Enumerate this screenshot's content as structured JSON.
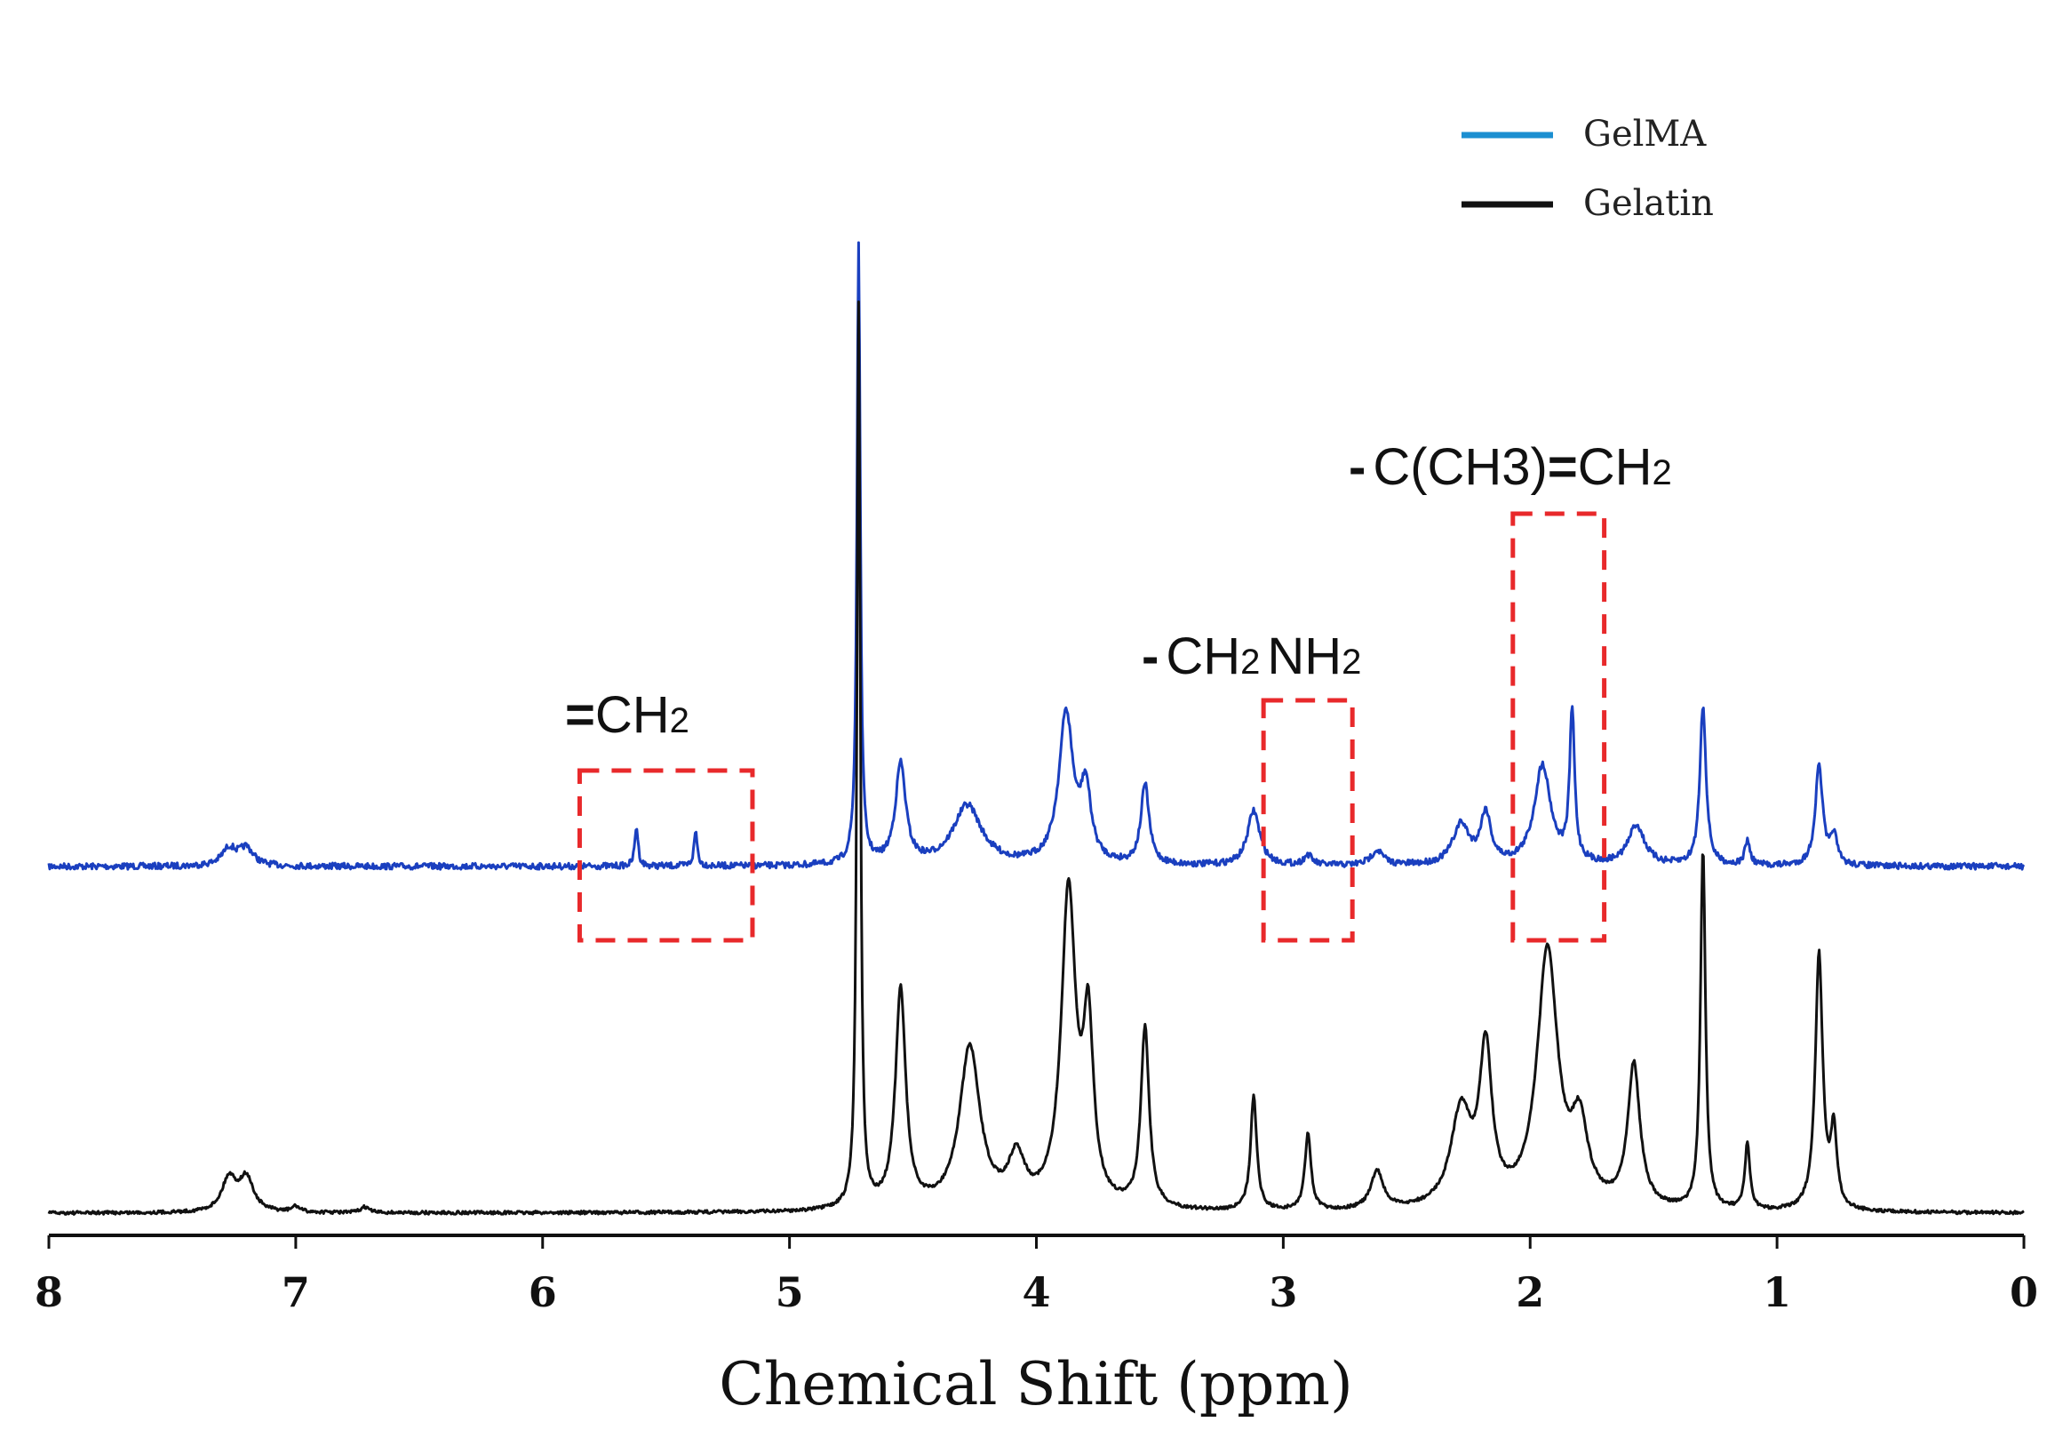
{
  "chart_data": {
    "type": "line",
    "title": "",
    "xlabel": "Chemical Shift (ppm)",
    "ylabel": "",
    "xlim": [
      8,
      0
    ],
    "x_reversed": true,
    "x_ticks": [
      "8",
      "7",
      "6",
      "5",
      "4",
      "3",
      "2",
      "1",
      "0"
    ],
    "grid": false,
    "legend_position": "top-right",
    "legend": [
      {
        "label": "GelMA",
        "color": "#1b8fd1"
      },
      {
        "label": "Gelatin",
        "color": "#111111"
      }
    ],
    "series": [
      {
        "name": "GelMA",
        "color": "#1a3fbf",
        "baseline": 0,
        "peaks": [
          {
            "ppm": 7.27,
            "height": 0.035,
            "width": 0.035
          },
          {
            "ppm": 7.2,
            "height": 0.035,
            "width": 0.035
          },
          {
            "ppm": 5.62,
            "height": 0.08,
            "width": 0.008
          },
          {
            "ppm": 5.38,
            "height": 0.07,
            "width": 0.008
          },
          {
            "ppm": 4.72,
            "height": 1.25,
            "width": 0.008
          },
          {
            "ppm": 4.55,
            "height": 0.2,
            "width": 0.025
          },
          {
            "ppm": 4.28,
            "height": 0.12,
            "width": 0.07
          },
          {
            "ppm": 3.88,
            "height": 0.3,
            "width": 0.035
          },
          {
            "ppm": 3.8,
            "height": 0.14,
            "width": 0.025
          },
          {
            "ppm": 3.56,
            "height": 0.16,
            "width": 0.02
          },
          {
            "ppm": 3.12,
            "height": 0.11,
            "width": 0.03
          },
          {
            "ppm": 2.9,
            "height": 0.02,
            "width": 0.02
          },
          {
            "ppm": 2.62,
            "height": 0.03,
            "width": 0.03
          },
          {
            "ppm": 2.28,
            "height": 0.08,
            "width": 0.04
          },
          {
            "ppm": 2.18,
            "height": 0.1,
            "width": 0.025
          },
          {
            "ppm": 1.95,
            "height": 0.2,
            "width": 0.04
          },
          {
            "ppm": 1.83,
            "height": 0.3,
            "width": 0.012
          },
          {
            "ppm": 1.57,
            "height": 0.08,
            "width": 0.04
          },
          {
            "ppm": 1.3,
            "height": 0.32,
            "width": 0.015
          },
          {
            "ppm": 1.12,
            "height": 0.05,
            "width": 0.012
          },
          {
            "ppm": 0.83,
            "height": 0.2,
            "width": 0.018
          },
          {
            "ppm": 0.77,
            "height": 0.06,
            "width": 0.015
          }
        ]
      },
      {
        "name": "Gelatin",
        "color": "#111111",
        "baseline": 0,
        "peaks": [
          {
            "ppm": 7.27,
            "height": 0.035,
            "width": 0.035
          },
          {
            "ppm": 7.2,
            "height": 0.035,
            "width": 0.035
          },
          {
            "ppm": 7.0,
            "height": 0.006,
            "width": 0.02
          },
          {
            "ppm": 6.72,
            "height": 0.006,
            "width": 0.02
          },
          {
            "ppm": 4.72,
            "height": 0.95,
            "width": 0.008
          },
          {
            "ppm": 4.55,
            "height": 0.23,
            "width": 0.025
          },
          {
            "ppm": 4.27,
            "height": 0.17,
            "width": 0.05
          },
          {
            "ppm": 4.08,
            "height": 0.05,
            "width": 0.04
          },
          {
            "ppm": 3.87,
            "height": 0.33,
            "width": 0.035
          },
          {
            "ppm": 3.79,
            "height": 0.18,
            "width": 0.025
          },
          {
            "ppm": 3.56,
            "height": 0.19,
            "width": 0.02
          },
          {
            "ppm": 3.12,
            "height": 0.12,
            "width": 0.015
          },
          {
            "ppm": 2.9,
            "height": 0.08,
            "width": 0.015
          },
          {
            "ppm": 2.62,
            "height": 0.04,
            "width": 0.03
          },
          {
            "ppm": 2.28,
            "height": 0.1,
            "width": 0.05
          },
          {
            "ppm": 2.18,
            "height": 0.16,
            "width": 0.03
          },
          {
            "ppm": 1.93,
            "height": 0.27,
            "width": 0.05
          },
          {
            "ppm": 1.8,
            "height": 0.08,
            "width": 0.04
          },
          {
            "ppm": 1.58,
            "height": 0.15,
            "width": 0.03
          },
          {
            "ppm": 1.3,
            "height": 0.38,
            "width": 0.012
          },
          {
            "ppm": 1.12,
            "height": 0.07,
            "width": 0.012
          },
          {
            "ppm": 0.83,
            "height": 0.27,
            "width": 0.018
          },
          {
            "ppm": 0.77,
            "height": 0.08,
            "width": 0.015
          }
        ]
      }
    ],
    "annotations": [
      {
        "id": "vinyl",
        "text": "=CH2",
        "highlight_ppm": [
          5.85,
          5.15
        ],
        "color": "#e8292b",
        "label_parts": {
          "bond": "=",
          "main": "CH",
          "sub": "2"
        }
      },
      {
        "id": "lysine",
        "text": "-CH2NH2",
        "highlight_ppm": [
          3.08,
          2.72
        ],
        "color": "#e8292b",
        "label_parts": {
          "bond": "-",
          "main1": "CH",
          "sub1": "2",
          "main2": "NH",
          "sub2": "2"
        }
      },
      {
        "id": "methyl",
        "text": "-C(CH3)=CH2",
        "highlight_ppm": [
          2.07,
          1.7
        ],
        "color": "#e8292b",
        "label_parts": {
          "bond": "-",
          "main1": "C(CH3)",
          "bond2": "=",
          "main2": "CH",
          "sub2": "2"
        }
      }
    ]
  }
}
